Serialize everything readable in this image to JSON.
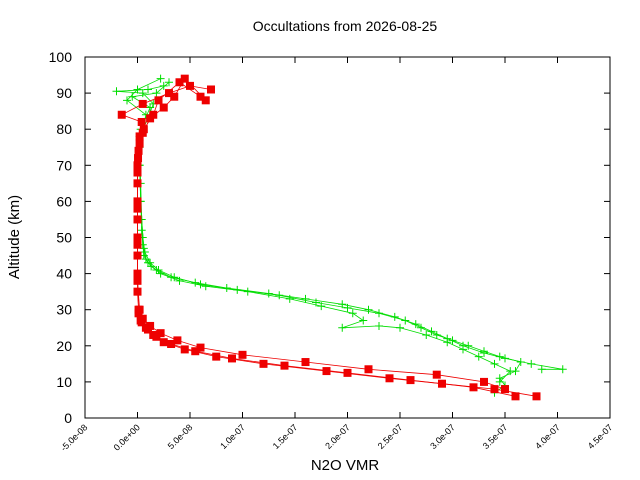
{
  "chart_data": {
    "type": "scatter",
    "title": "Occultations from 2026-08-25",
    "xlabel": "N2O VMR",
    "ylabel": "Altitude (km)",
    "xlim": [
      -5e-08,
      4.5e-07
    ],
    "ylim": [
      0,
      100
    ],
    "grid": false,
    "legend": "none",
    "x_ticks": [
      -5e-08,
      0,
      5e-08,
      1e-07,
      1.5e-07,
      2e-07,
      2.5e-07,
      3e-07,
      3.5e-07,
      4e-07,
      4.5e-07
    ],
    "x_tick_labels": [
      "-5.0e-08",
      "0.0e+00",
      "5.0e-08",
      "1.0e-07",
      "1.5e-07",
      "2.0e-07",
      "2.5e-07",
      "3.0e-07",
      "3.5e-07",
      "4.0e-07",
      "4.5e-07"
    ],
    "y_ticks": [
      0,
      10,
      20,
      30,
      40,
      50,
      60,
      70,
      80,
      90,
      100
    ],
    "y_tick_labels": [
      "0",
      "10",
      "20",
      "30",
      "40",
      "50",
      "60",
      "70",
      "80",
      "90",
      "100"
    ],
    "series": [
      {
        "color": "#00dd00",
        "marker": "plus",
        "profiles": [
          [
            [
              3.85e-07,
              13.5
            ],
            [
              4.05e-07,
              13.5
            ],
            [
              3.75e-07,
              15
            ],
            [
              3.5e-07,
              16.5
            ],
            [
              3.3e-07,
              18
            ],
            [
              3.1e-07,
              20
            ],
            [
              2.95e-07,
              22
            ],
            [
              2.8e-07,
              24
            ],
            [
              2.65e-07,
              26
            ],
            [
              2.45e-07,
              28
            ],
            [
              2.2e-07,
              30
            ],
            [
              1.95e-07,
              31.5
            ],
            [
              1.6e-07,
              33
            ],
            [
              1.25e-07,
              34.5
            ],
            [
              8.5e-08,
              36
            ],
            [
              5.5e-08,
              37.5
            ],
            [
              3.2e-08,
              39
            ],
            [
              1.8e-08,
              41
            ],
            [
              1e-08,
              43
            ],
            [
              6e-09,
              45
            ],
            [
              5e-09,
              48
            ],
            [
              4e-09,
              52
            ],
            [
              3e-09,
              60
            ],
            [
              2e-09,
              70
            ],
            [
              2e-09,
              78
            ],
            [
              1e-08,
              83
            ],
            [
              1.5e-08,
              87
            ],
            [
              5e-09,
              90
            ],
            [
              -2e-08,
              90.5
            ],
            [
              1e-08,
              91
            ],
            [
              2.5e-08,
              92
            ]
          ],
          [
            [
              3.4e-07,
              7
            ],
            [
              3.5e-07,
              9
            ],
            [
              3.45e-07,
              11
            ],
            [
              3.6e-07,
              13
            ],
            [
              3.65e-07,
              15.5
            ],
            [
              3.45e-07,
              17
            ],
            [
              3.3e-07,
              18.5
            ],
            [
              3.15e-07,
              20
            ],
            [
              3e-07,
              21.5
            ],
            [
              2.85e-07,
              23
            ],
            [
              2.7e-07,
              25
            ],
            [
              2.55e-07,
              27
            ],
            [
              2.3e-07,
              29
            ],
            [
              2e-07,
              30.5
            ],
            [
              1.7e-07,
              32
            ],
            [
              1.35e-07,
              34
            ],
            [
              9.5e-08,
              35.5
            ],
            [
              6e-08,
              37
            ],
            [
              3.5e-08,
              39
            ],
            [
              2e-08,
              41
            ],
            [
              1.2e-08,
              43
            ],
            [
              7e-09,
              46
            ],
            [
              5e-09,
              50
            ],
            [
              3e-09,
              60
            ],
            [
              2e-09,
              70
            ],
            [
              3e-09,
              80
            ],
            [
              1.2e-08,
              86
            ],
            [
              -5e-09,
              89
            ],
            [
              1.8e-08,
              90
            ],
            [
              3e-08,
              93
            ]
          ],
          [
            [
              3.45e-07,
              10
            ],
            [
              3.55e-07,
              13
            ],
            [
              3.4e-07,
              15
            ],
            [
              3.25e-07,
              17
            ],
            [
              3.1e-07,
              19
            ],
            [
              2.95e-07,
              21
            ],
            [
              2.75e-07,
              23
            ],
            [
              2.5e-07,
              25
            ],
            [
              2.3e-07,
              25.5
            ],
            [
              1.95e-07,
              25
            ],
            [
              2.15e-07,
              27
            ],
            [
              2.05e-07,
              29
            ],
            [
              1.75e-07,
              31
            ],
            [
              1.45e-07,
              33
            ],
            [
              1.05e-07,
              35
            ],
            [
              6.5e-08,
              36.5
            ],
            [
              4e-08,
              38
            ],
            [
              2.2e-08,
              40
            ],
            [
              1.3e-08,
              42
            ],
            [
              8e-09,
              44
            ],
            [
              6e-09,
              47
            ],
            [
              4e-09,
              55
            ],
            [
              3e-09,
              65
            ],
            [
              2e-09,
              75
            ],
            [
              8e-09,
              84
            ],
            [
              -1e-08,
              88
            ],
            [
              0,
              91
            ],
            [
              2.2e-08,
              94
            ]
          ]
        ]
      },
      {
        "color": "#ee0000",
        "marker": "square",
        "profiles": [
          [
            [
              3.8e-07,
              6
            ],
            [
              3.4e-07,
              8
            ],
            [
              2.9e-07,
              9.5
            ],
            [
              2.4e-07,
              11
            ],
            [
              1.8e-07,
              13
            ],
            [
              1.2e-07,
              15
            ],
            [
              7.5e-08,
              17
            ],
            [
              4.5e-08,
              19
            ],
            [
              2.5e-08,
              21
            ],
            [
              1.5e-08,
              23
            ],
            [
              8e-09,
              25
            ],
            [
              3e-09,
              27
            ],
            [
              1e-09,
              30
            ],
            [
              0,
              35
            ],
            [
              0,
              45
            ],
            [
              0,
              55
            ],
            [
              0,
              65
            ],
            [
              5e-10,
              72
            ],
            [
              2e-09,
              78
            ],
            [
              4e-09,
              82
            ],
            [
              -1.5e-08,
              84
            ],
            [
              5e-09,
              87
            ],
            [
              3e-08,
              90
            ],
            [
              5e-08,
              92
            ],
            [
              7e-08,
              91
            ]
          ],
          [
            [
              3.6e-07,
              6
            ],
            [
              3.2e-07,
              8.5
            ],
            [
              2.6e-07,
              10.5
            ],
            [
              2e-07,
              12.5
            ],
            [
              1.4e-07,
              14.5
            ],
            [
              9e-08,
              16.5
            ],
            [
              5.5e-08,
              18.5
            ],
            [
              3.2e-08,
              20.5
            ],
            [
              1.8e-08,
              22.5
            ],
            [
              1e-08,
              24.5
            ],
            [
              4e-09,
              26.5
            ],
            [
              1e-09,
              29
            ],
            [
              0,
              40
            ],
            [
              0,
              50
            ],
            [
              0,
              60
            ],
            [
              0,
              70
            ],
            [
              2e-09,
              76
            ],
            [
              6e-09,
              80
            ],
            [
              1.5e-08,
              84
            ],
            [
              2e-08,
              88
            ],
            [
              4e-08,
              93
            ],
            [
              6e-08,
              89
            ]
          ],
          [
            [
              3.5e-07,
              8
            ],
            [
              3.3e-07,
              10
            ],
            [
              2.85e-07,
              12
            ],
            [
              2.2e-07,
              13.5
            ],
            [
              1.6e-07,
              15.5
            ],
            [
              1e-07,
              17.5
            ],
            [
              6e-08,
              19.5
            ],
            [
              3.8e-08,
              21.5
            ],
            [
              2.2e-08,
              23.5
            ],
            [
              1.2e-08,
              25.5
            ],
            [
              5e-09,
              27.5
            ],
            [
              2e-09,
              30
            ],
            [
              0,
              38
            ],
            [
              0,
              48
            ],
            [
              0,
              58
            ],
            [
              0,
              68
            ],
            [
              1e-09,
              74
            ],
            [
              5e-09,
              79
            ],
            [
              1.2e-08,
              83
            ],
            [
              2.5e-08,
              86
            ],
            [
              3.5e-08,
              89
            ],
            [
              4.5e-08,
              94
            ],
            [
              6.5e-08,
              88
            ]
          ]
        ]
      }
    ]
  }
}
